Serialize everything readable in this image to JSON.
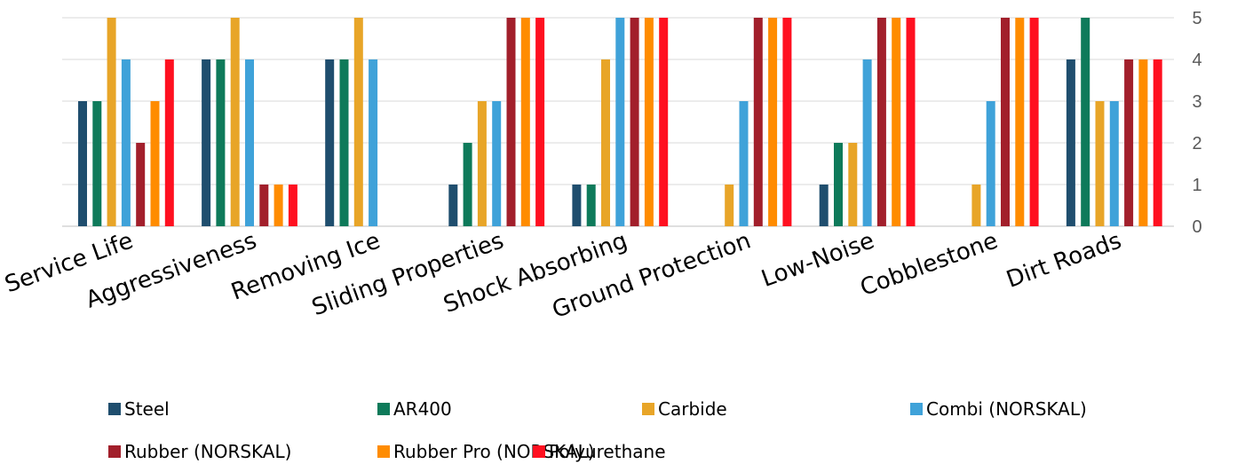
{
  "chart_data": {
    "type": "bar",
    "categories": [
      "Service Life",
      "Aggressiveness",
      "Removing Ice",
      "Sliding Properties",
      "Shock Absorbing",
      "Ground Protection",
      "Low-Noise",
      "Cobblestone",
      "Dirt Roads"
    ],
    "series": [
      {
        "name": "Steel",
        "color": "#1f4e6e",
        "values": [
          3,
          4,
          4,
          1,
          1,
          0,
          1,
          0,
          4
        ]
      },
      {
        "name": "AR400",
        "color": "#0e7a5a",
        "values": [
          3,
          4,
          4,
          2,
          1,
          0,
          2,
          0,
          5
        ]
      },
      {
        "name": "Carbide",
        "color": "#e8a528",
        "values": [
          5,
          5,
          5,
          3,
          4,
          1,
          2,
          1,
          3
        ]
      },
      {
        "name": "Combi (NORSKAL)",
        "color": "#3fa2d9",
        "values": [
          4,
          4,
          4,
          3,
          5,
          3,
          4,
          3,
          3
        ]
      },
      {
        "name": "Rubber (NORSKAL)",
        "color": "#a21f2b",
        "values": [
          2,
          1,
          0,
          5,
          5,
          5,
          5,
          5,
          4
        ]
      },
      {
        "name": "Rubber Pro (NORSKAL)",
        "color": "#ff8c00",
        "values": [
          3,
          1,
          0,
          5,
          5,
          5,
          5,
          5,
          4
        ]
      },
      {
        "name": "Polyurethane",
        "color": "#ff1020",
        "values": [
          4,
          1,
          0,
          5,
          5,
          5,
          5,
          5,
          4
        ]
      }
    ],
    "yticks": [
      0,
      1,
      2,
      3,
      4,
      5
    ],
    "ylim": [
      0,
      5
    ],
    "y_axis_side": "right",
    "grid": true,
    "legend_position": "bottom"
  }
}
